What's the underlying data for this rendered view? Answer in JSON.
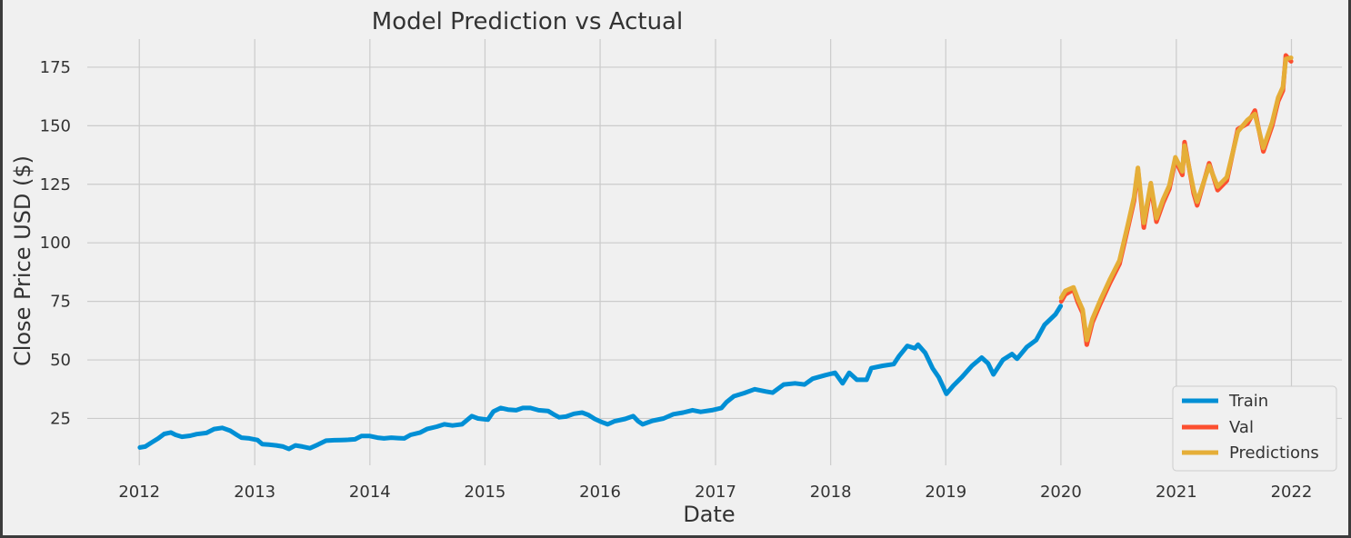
{
  "chart_data": {
    "type": "line",
    "title": "Model Prediction vs Actual",
    "xlabel": "Date",
    "ylabel": "Close Price USD ($)",
    "xlim": [
      "2011-07-20",
      "2022-06-10"
    ],
    "ylim": [
      5,
      187
    ],
    "x_ticks": [
      "2012",
      "2013",
      "2014",
      "2015",
      "2016",
      "2017",
      "2018",
      "2019",
      "2020",
      "2021",
      "2022"
    ],
    "y_ticks": [
      25,
      50,
      75,
      100,
      125,
      150,
      175
    ],
    "grid": true,
    "legend_position": "lower-right",
    "colors": {
      "Train": "#008fd5",
      "Val": "#fc4f30",
      "Predictions": "#e5ae38"
    },
    "series": [
      {
        "name": "Train",
        "points": [
          [
            "2012-01-03",
            12.6
          ],
          [
            "2012-01-20",
            13.0
          ],
          [
            "2012-02-10",
            14.8
          ],
          [
            "2012-03-01",
            16.5
          ],
          [
            "2012-03-20",
            18.4
          ],
          [
            "2012-04-10",
            19.0
          ],
          [
            "2012-04-25",
            18.0
          ],
          [
            "2012-05-15",
            17.2
          ],
          [
            "2012-06-10",
            17.6
          ],
          [
            "2012-07-01",
            18.3
          ],
          [
            "2012-08-01",
            18.8
          ],
          [
            "2012-08-25",
            20.5
          ],
          [
            "2012-09-20",
            21.0
          ],
          [
            "2012-10-15",
            19.8
          ],
          [
            "2012-11-05",
            18.0
          ],
          [
            "2012-11-20",
            16.8
          ],
          [
            "2012-12-15",
            16.5
          ],
          [
            "2013-01-10",
            15.8
          ],
          [
            "2013-01-25",
            14.0
          ],
          [
            "2013-02-15",
            13.8
          ],
          [
            "2013-03-10",
            13.5
          ],
          [
            "2013-04-01",
            13.0
          ],
          [
            "2013-04-19",
            12.0
          ],
          [
            "2013-05-10",
            13.5
          ],
          [
            "2013-06-01",
            13.0
          ],
          [
            "2013-06-25",
            12.3
          ],
          [
            "2013-07-20",
            13.8
          ],
          [
            "2013-08-15",
            15.5
          ],
          [
            "2013-09-10",
            15.7
          ],
          [
            "2013-10-01",
            15.8
          ],
          [
            "2013-10-25",
            15.9
          ],
          [
            "2013-11-15",
            16.1
          ],
          [
            "2013-12-05",
            17.5
          ],
          [
            "2014-01-01",
            17.5
          ],
          [
            "2014-01-25",
            16.8
          ],
          [
            "2014-02-15",
            16.5
          ],
          [
            "2014-03-10",
            16.8
          ],
          [
            "2014-04-01",
            16.6
          ],
          [
            "2014-04-20",
            16.5
          ],
          [
            "2014-05-10",
            18.0
          ],
          [
            "2014-06-10",
            19.0
          ],
          [
            "2014-07-01",
            20.5
          ],
          [
            "2014-08-01",
            21.5
          ],
          [
            "2014-08-25",
            22.5
          ],
          [
            "2014-09-20",
            22.0
          ],
          [
            "2014-10-20",
            22.5
          ],
          [
            "2014-11-20",
            26.0
          ],
          [
            "2014-12-10",
            25.0
          ],
          [
            "2015-01-10",
            24.5
          ],
          [
            "2015-01-28",
            28.0
          ],
          [
            "2015-02-20",
            29.5
          ],
          [
            "2015-03-15",
            28.8
          ],
          [
            "2015-04-10",
            28.5
          ],
          [
            "2015-05-01",
            29.5
          ],
          [
            "2015-05-25",
            29.5
          ],
          [
            "2015-06-20",
            28.5
          ],
          [
            "2015-07-20",
            28.2
          ],
          [
            "2015-08-10",
            26.5
          ],
          [
            "2015-08-24",
            25.5
          ],
          [
            "2015-09-15",
            25.8
          ],
          [
            "2015-10-10",
            27.0
          ],
          [
            "2015-11-05",
            27.5
          ],
          [
            "2015-11-25",
            26.5
          ],
          [
            "2015-12-15",
            24.8
          ],
          [
            "2016-01-05",
            23.5
          ],
          [
            "2016-01-25",
            22.5
          ],
          [
            "2016-02-15",
            23.8
          ],
          [
            "2016-03-20",
            24.8
          ],
          [
            "2016-04-15",
            26.0
          ],
          [
            "2016-05-01",
            23.8
          ],
          [
            "2016-05-15",
            22.5
          ],
          [
            "2016-06-15",
            24.0
          ],
          [
            "2016-07-20",
            25.0
          ],
          [
            "2016-08-20",
            26.8
          ],
          [
            "2016-09-20",
            27.5
          ],
          [
            "2016-10-20",
            28.5
          ],
          [
            "2016-11-15",
            27.8
          ],
          [
            "2016-12-20",
            28.5
          ],
          [
            "2017-01-20",
            29.5
          ],
          [
            "2017-02-05",
            32.0
          ],
          [
            "2017-02-28",
            34.5
          ],
          [
            "2017-04-01",
            35.8
          ],
          [
            "2017-05-05",
            37.5
          ],
          [
            "2017-06-10",
            36.5
          ],
          [
            "2017-07-01",
            36.0
          ],
          [
            "2017-08-05",
            39.5
          ],
          [
            "2017-09-10",
            40.0
          ],
          [
            "2017-10-10",
            39.5
          ],
          [
            "2017-11-05",
            42.0
          ],
          [
            "2017-12-15",
            43.5
          ],
          [
            "2018-01-15",
            44.5
          ],
          [
            "2018-02-08",
            40.0
          ],
          [
            "2018-03-01",
            44.5
          ],
          [
            "2018-03-25",
            41.5
          ],
          [
            "2018-04-25",
            41.5
          ],
          [
            "2018-05-10",
            46.5
          ],
          [
            "2018-06-15",
            47.5
          ],
          [
            "2018-07-20",
            48.2
          ],
          [
            "2018-08-05",
            51.5
          ],
          [
            "2018-09-01",
            56.0
          ],
          [
            "2018-09-25",
            55.0
          ],
          [
            "2018-10-05",
            56.5
          ],
          [
            "2018-10-28",
            53.0
          ],
          [
            "2018-11-20",
            46.5
          ],
          [
            "2018-12-10",
            42.5
          ],
          [
            "2019-01-03",
            35.5
          ],
          [
            "2019-01-25",
            39.0
          ],
          [
            "2019-02-20",
            42.5
          ],
          [
            "2019-03-25",
            47.5
          ],
          [
            "2019-04-25",
            51.0
          ],
          [
            "2019-05-15",
            48.5
          ],
          [
            "2019-06-01",
            43.8
          ],
          [
            "2019-07-01",
            50.0
          ],
          [
            "2019-07-30",
            52.5
          ],
          [
            "2019-08-15",
            50.5
          ],
          [
            "2019-09-15",
            55.5
          ],
          [
            "2019-10-15",
            58.5
          ],
          [
            "2019-11-10",
            65.0
          ],
          [
            "2019-12-15",
            69.5
          ],
          [
            "2019-12-31",
            73.0
          ]
        ]
      },
      {
        "name": "Val",
        "points": [
          [
            "2020-01-02",
            75.0
          ],
          [
            "2020-01-15",
            78.0
          ],
          [
            "2020-02-10",
            80.0
          ],
          [
            "2020-02-24",
            74.5
          ],
          [
            "2020-03-10",
            70.0
          ],
          [
            "2020-03-23",
            56.5
          ],
          [
            "2020-04-10",
            66.0
          ],
          [
            "2020-05-05",
            74.0
          ],
          [
            "2020-06-05",
            83.0
          ],
          [
            "2020-07-05",
            91.0
          ],
          [
            "2020-07-31",
            106.0
          ],
          [
            "2020-08-20",
            118.0
          ],
          [
            "2020-09-01",
            131.5
          ],
          [
            "2020-09-20",
            106.5
          ],
          [
            "2020-10-12",
            124.0
          ],
          [
            "2020-10-30",
            109.0
          ],
          [
            "2020-11-20",
            117.0
          ],
          [
            "2020-12-10",
            123.0
          ],
          [
            "2020-12-29",
            135.5
          ],
          [
            "2021-01-20",
            129.0
          ],
          [
            "2021-01-27",
            143.0
          ],
          [
            "2021-02-25",
            121.0
          ],
          [
            "2021-03-08",
            116.0
          ],
          [
            "2021-04-15",
            134.0
          ],
          [
            "2021-05-12",
            122.5
          ],
          [
            "2021-06-10",
            126.5
          ],
          [
            "2021-07-15",
            148.5
          ],
          [
            "2021-08-15",
            151.0
          ],
          [
            "2021-09-07",
            156.5
          ],
          [
            "2021-10-04",
            139.0
          ],
          [
            "2021-11-01",
            150.0
          ],
          [
            "2021-11-20",
            160.5
          ],
          [
            "2021-12-05",
            165.0
          ],
          [
            "2021-12-14",
            180.0
          ],
          [
            "2021-12-31",
            177.5
          ]
        ]
      },
      {
        "name": "Predictions",
        "points": [
          [
            "2020-01-02",
            76.5
          ],
          [
            "2020-01-15",
            79.5
          ],
          [
            "2020-02-10",
            81.0
          ],
          [
            "2020-02-24",
            76.0
          ],
          [
            "2020-03-10",
            71.5
          ],
          [
            "2020-03-23",
            58.5
          ],
          [
            "2020-04-10",
            67.5
          ],
          [
            "2020-05-05",
            75.5
          ],
          [
            "2020-06-05",
            84.5
          ],
          [
            "2020-07-05",
            92.5
          ],
          [
            "2020-07-31",
            107.5
          ],
          [
            "2020-08-20",
            119.5
          ],
          [
            "2020-09-01",
            132.0
          ],
          [
            "2020-09-20",
            108.5
          ],
          [
            "2020-10-12",
            125.5
          ],
          [
            "2020-10-30",
            110.5
          ],
          [
            "2020-11-20",
            118.5
          ],
          [
            "2020-12-10",
            124.5
          ],
          [
            "2020-12-29",
            136.5
          ],
          [
            "2021-01-20",
            130.5
          ],
          [
            "2021-01-27",
            141.5
          ],
          [
            "2021-02-25",
            122.5
          ],
          [
            "2021-03-08",
            117.5
          ],
          [
            "2021-04-15",
            133.0
          ],
          [
            "2021-05-12",
            124.0
          ],
          [
            "2021-06-10",
            128.0
          ],
          [
            "2021-07-15",
            147.5
          ],
          [
            "2021-08-15",
            152.5
          ],
          [
            "2021-09-07",
            155.0
          ],
          [
            "2021-10-04",
            140.5
          ],
          [
            "2021-11-01",
            151.5
          ],
          [
            "2021-11-20",
            162.0
          ],
          [
            "2021-12-05",
            166.5
          ],
          [
            "2021-12-14",
            178.5
          ],
          [
            "2021-12-31",
            179.0
          ]
        ]
      }
    ]
  }
}
